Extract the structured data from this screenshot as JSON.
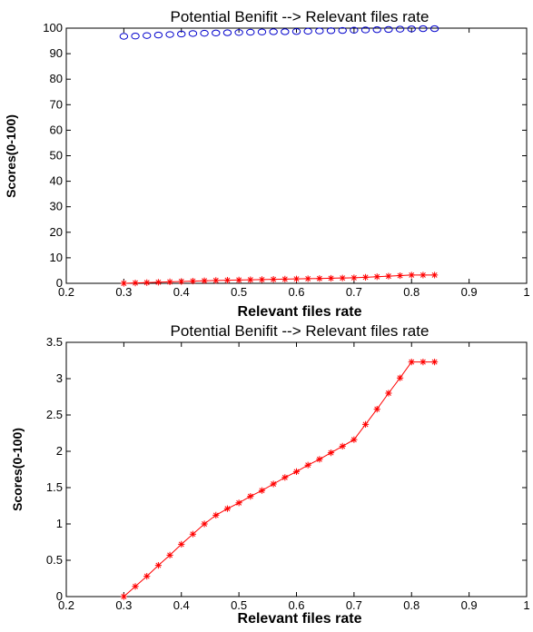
{
  "chart_data": [
    {
      "type": "line",
      "title": "Potential Benifit --> Relevant files rate",
      "xlabel": "Relevant files rate",
      "ylabel": "Scores(0-100)",
      "xlim": [
        0.2,
        1
      ],
      "ylim": [
        0,
        100
      ],
      "xticks": [
        "0.2",
        "0.3",
        "0.4",
        "0.5",
        "0.6",
        "0.7",
        "0.8",
        "0.9",
        "1"
      ],
      "yticks": [
        "0",
        "10",
        "20",
        "30",
        "40",
        "50",
        "60",
        "70",
        "80",
        "90",
        "100"
      ],
      "grid": false,
      "x": [
        0.3,
        0.32,
        0.34,
        0.36,
        0.38,
        0.4,
        0.42,
        0.44,
        0.46,
        0.48,
        0.5,
        0.52,
        0.54,
        0.56,
        0.58,
        0.6,
        0.62,
        0.64,
        0.66,
        0.68,
        0.7,
        0.72,
        0.74,
        0.76,
        0.78,
        0.8,
        0.82,
        0.84
      ],
      "series": [
        {
          "color": "#0000cc",
          "marker": "circle",
          "line": "none",
          "values": [
            96.8,
            96.9,
            97.1,
            97.3,
            97.5,
            97.7,
            97.9,
            98.0,
            98.1,
            98.2,
            98.3,
            98.4,
            98.5,
            98.6,
            98.6,
            98.7,
            98.8,
            98.9,
            99.0,
            99.1,
            99.2,
            99.3,
            99.4,
            99.5,
            99.6,
            99.7,
            99.8,
            99.8
          ]
        },
        {
          "color": "#ff0000",
          "marker": "asterisk",
          "line": "solid",
          "values": [
            0,
            0.14,
            0.28,
            0.43,
            0.57,
            0.72,
            0.86,
            1.0,
            1.12,
            1.21,
            1.29,
            1.38,
            1.46,
            1.55,
            1.64,
            1.72,
            1.81,
            1.89,
            1.98,
            2.07,
            2.16,
            2.37,
            2.58,
            2.8,
            3.01,
            3.23,
            3.23,
            3.23
          ]
        }
      ]
    },
    {
      "type": "line",
      "title": "Potential Benifit --> Relevant files rate",
      "xlabel": "Relevant files rate",
      "ylabel": "Scores(0-100)",
      "xlim": [
        0.2,
        1
      ],
      "ylim": [
        0,
        3.5
      ],
      "xticks": [
        "0.2",
        "0.3",
        "0.4",
        "0.5",
        "0.6",
        "0.7",
        "0.8",
        "0.9",
        "1"
      ],
      "yticks": [
        "0",
        "0.5",
        "1",
        "1.5",
        "2",
        "2.5",
        "3",
        "3.5"
      ],
      "grid": false,
      "x": [
        0.3,
        0.32,
        0.34,
        0.36,
        0.38,
        0.4,
        0.42,
        0.44,
        0.46,
        0.48,
        0.5,
        0.52,
        0.54,
        0.56,
        0.58,
        0.6,
        0.62,
        0.64,
        0.66,
        0.68,
        0.7,
        0.72,
        0.74,
        0.76,
        0.78,
        0.8,
        0.82,
        0.84
      ],
      "series": [
        {
          "color": "#ff0000",
          "marker": "asterisk",
          "line": "solid",
          "values": [
            0,
            0.14,
            0.28,
            0.43,
            0.57,
            0.72,
            0.86,
            1.0,
            1.12,
            1.21,
            1.29,
            1.38,
            1.46,
            1.55,
            1.64,
            1.72,
            1.81,
            1.89,
            1.98,
            2.07,
            2.16,
            2.37,
            2.58,
            2.8,
            3.01,
            3.23,
            3.23,
            3.23
          ]
        }
      ]
    }
  ]
}
